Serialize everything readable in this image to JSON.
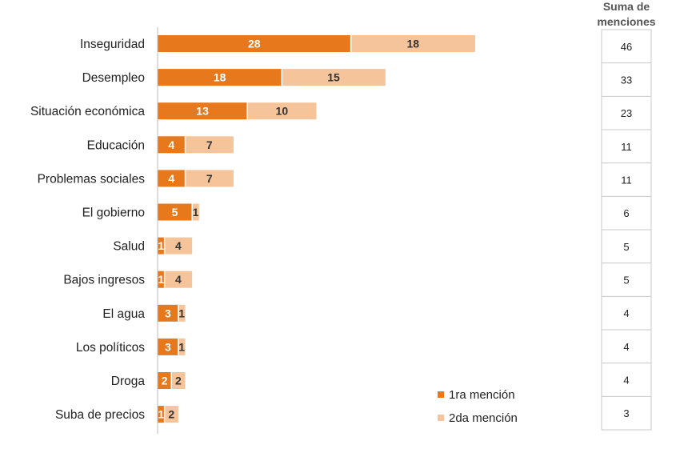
{
  "chart_data": {
    "type": "bar",
    "orientation": "horizontal",
    "stacked": true,
    "categories": [
      "Inseguridad",
      "Desempleo",
      "Situación económica",
      "Educación",
      "Problemas sociales",
      "El gobierno",
      "Salud",
      "Bajos ingresos",
      "El agua",
      "Los políticos",
      "Droga",
      "Suba de precios"
    ],
    "series": [
      {
        "name": "1ra mención",
        "color": "#e8781c",
        "values": [
          28,
          18,
          13,
          4,
          4,
          5,
          1,
          1,
          3,
          3,
          2,
          1
        ]
      },
      {
        "name": "2da mención",
        "color": "#f6c49a",
        "values": [
          18,
          15,
          10,
          7,
          7,
          1,
          4,
          4,
          1,
          1,
          2,
          2
        ]
      }
    ],
    "sum_header_line1": "Suma de",
    "sum_header_line2": "menciones",
    "sums": [
      46,
      33,
      23,
      11,
      11,
      6,
      5,
      5,
      4,
      4,
      4,
      3
    ],
    "legend_position": "bottom-right",
    "grid": false
  }
}
